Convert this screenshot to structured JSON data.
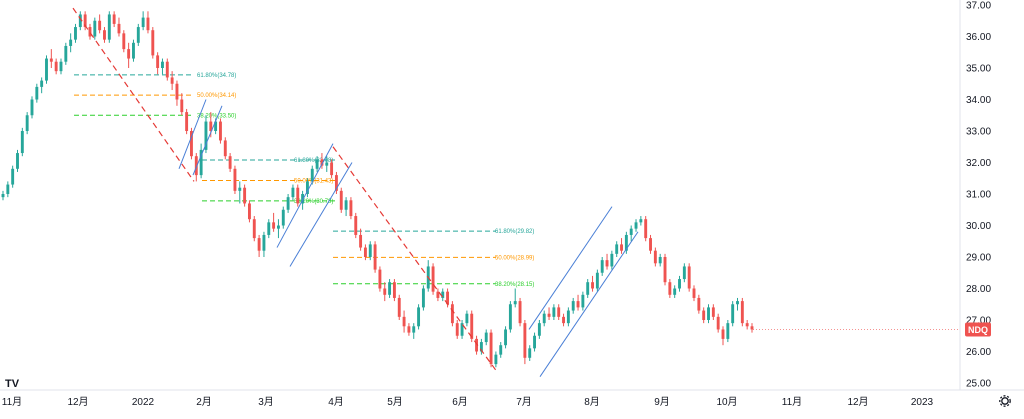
{
  "chart_data": {
    "type": "candlestick",
    "symbol": "NDQ",
    "last_price": 26.7,
    "y_ticks": [
      "37.00",
      "36.00",
      "35.00",
      "34.00",
      "33.00",
      "32.00",
      "31.00",
      "30.00",
      "29.00",
      "28.00",
      "27.00",
      "26.00",
      "25.00"
    ],
    "x_ticks": [
      "11月",
      "12月",
      "2022",
      "2月",
      "3月",
      "4月",
      "5月",
      "6月",
      "7月",
      "8月",
      "9月",
      "10月",
      "11月",
      "12月",
      "2023"
    ],
    "ylim": [
      24.5,
      37.3
    ],
    "candles": [
      [
        30.9,
        31.1,
        30.8,
        31.0
      ],
      [
        31.0,
        31.4,
        30.9,
        31.3
      ],
      [
        31.3,
        31.9,
        31.2,
        31.8
      ],
      [
        31.8,
        32.4,
        31.7,
        32.3
      ],
      [
        32.3,
        33.1,
        32.2,
        33.0
      ],
      [
        33.0,
        33.6,
        32.9,
        33.5
      ],
      [
        33.5,
        34.1,
        33.4,
        34.0
      ],
      [
        34.0,
        34.5,
        33.9,
        34.4
      ],
      [
        34.4,
        34.7,
        34.2,
        34.6
      ],
      [
        34.6,
        35.4,
        34.5,
        35.3
      ],
      [
        35.3,
        35.6,
        35.0,
        35.2
      ],
      [
        35.2,
        35.3,
        34.8,
        34.9
      ],
      [
        34.9,
        35.3,
        34.8,
        35.2
      ],
      [
        35.2,
        35.8,
        35.1,
        35.7
      ],
      [
        35.7,
        36.1,
        35.5,
        35.9
      ],
      [
        35.9,
        36.4,
        35.8,
        36.3
      ],
      [
        36.3,
        36.8,
        36.2,
        36.7
      ],
      [
        36.7,
        36.8,
        36.2,
        36.3
      ],
      [
        36.3,
        36.4,
        35.9,
        36.0
      ],
      [
        36.0,
        36.6,
        35.9,
        36.5
      ],
      [
        36.5,
        36.7,
        36.1,
        36.2
      ],
      [
        36.2,
        36.3,
        35.8,
        35.9
      ],
      [
        35.9,
        36.8,
        35.8,
        36.7
      ],
      [
        36.7,
        36.8,
        36.3,
        36.4
      ],
      [
        36.4,
        36.6,
        36.0,
        36.1
      ],
      [
        36.1,
        36.2,
        35.5,
        35.6
      ],
      [
        35.6,
        35.8,
        35.0,
        35.3
      ],
      [
        35.3,
        35.9,
        35.2,
        35.8
      ],
      [
        35.8,
        36.4,
        35.7,
        36.3
      ],
      [
        36.3,
        36.8,
        36.2,
        36.6
      ],
      [
        36.6,
        36.8,
        36.1,
        36.2
      ],
      [
        36.2,
        36.3,
        35.3,
        35.4
      ],
      [
        35.4,
        35.5,
        34.8,
        35.0
      ],
      [
        35.0,
        35.3,
        34.8,
        35.2
      ],
      [
        35.2,
        35.3,
        34.6,
        34.7
      ],
      [
        34.7,
        34.9,
        34.3,
        34.5
      ],
      [
        34.5,
        34.6,
        33.8,
        34.0
      ],
      [
        34.0,
        34.2,
        33.5,
        33.6
      ],
      [
        33.6,
        33.7,
        32.9,
        33.0
      ],
      [
        33.0,
        33.1,
        32.1,
        32.2
      ],
      [
        32.2,
        32.3,
        31.4,
        31.6
      ],
      [
        31.6,
        32.6,
        31.5,
        32.4
      ],
      [
        32.4,
        33.5,
        32.3,
        33.3
      ],
      [
        33.3,
        33.6,
        32.8,
        33.0
      ],
      [
        33.0,
        33.4,
        32.9,
        33.3
      ],
      [
        33.3,
        33.4,
        32.6,
        32.7
      ],
      [
        32.7,
        32.8,
        32.1,
        32.2
      ],
      [
        32.2,
        32.3,
        31.7,
        31.8
      ],
      [
        31.8,
        31.9,
        31.0,
        31.1
      ],
      [
        31.1,
        31.4,
        30.7,
        31.2
      ],
      [
        31.2,
        31.3,
        30.6,
        30.7
      ],
      [
        30.7,
        30.8,
        30.1,
        30.2
      ],
      [
        30.2,
        30.3,
        29.5,
        29.6
      ],
      [
        29.6,
        29.7,
        29.0,
        29.2
      ],
      [
        29.2,
        29.8,
        29.0,
        29.7
      ],
      [
        29.7,
        30.2,
        29.6,
        30.1
      ],
      [
        30.1,
        30.4,
        29.8,
        29.9
      ],
      [
        29.9,
        30.2,
        29.6,
        30.0
      ],
      [
        30.0,
        30.6,
        29.9,
        30.5
      ],
      [
        30.5,
        31.0,
        30.4,
        30.9
      ],
      [
        30.9,
        31.3,
        30.8,
        31.2
      ],
      [
        31.2,
        31.3,
        30.6,
        30.7
      ],
      [
        30.7,
        31.1,
        30.5,
        31.0
      ],
      [
        31.0,
        31.5,
        30.9,
        31.4
      ],
      [
        31.4,
        31.9,
        31.3,
        31.8
      ],
      [
        31.8,
        32.2,
        31.7,
        32.1
      ],
      [
        32.1,
        32.3,
        31.8,
        31.9
      ],
      [
        31.9,
        32.2,
        31.7,
        32.0
      ],
      [
        32.0,
        32.1,
        31.5,
        31.6
      ],
      [
        31.6,
        31.7,
        31.0,
        31.1
      ],
      [
        31.1,
        31.2,
        30.4,
        30.5
      ],
      [
        30.5,
        30.9,
        30.3,
        30.8
      ],
      [
        30.8,
        30.9,
        30.2,
        30.3
      ],
      [
        30.3,
        30.4,
        29.6,
        29.7
      ],
      [
        29.7,
        29.9,
        29.2,
        29.3
      ],
      [
        29.3,
        29.4,
        28.9,
        29.0
      ],
      [
        29.0,
        29.5,
        28.9,
        29.4
      ],
      [
        29.4,
        29.5,
        28.5,
        28.6
      ],
      [
        28.6,
        28.7,
        27.9,
        28.0
      ],
      [
        28.0,
        28.2,
        27.6,
        27.8
      ],
      [
        27.8,
        28.3,
        27.7,
        28.2
      ],
      [
        28.2,
        28.3,
        27.6,
        27.7
      ],
      [
        27.7,
        27.8,
        27.0,
        27.1
      ],
      [
        27.1,
        27.3,
        26.6,
        26.8
      ],
      [
        26.8,
        26.9,
        26.5,
        26.6
      ],
      [
        26.6,
        26.9,
        26.4,
        26.8
      ],
      [
        26.8,
        27.5,
        26.7,
        27.4
      ],
      [
        27.4,
        28.1,
        27.3,
        28.0
      ],
      [
        28.0,
        28.9,
        27.9,
        28.7
      ],
      [
        28.7,
        28.8,
        27.8,
        27.9
      ],
      [
        27.9,
        28.0,
        27.6,
        27.7
      ],
      [
        27.7,
        28.0,
        27.6,
        27.9
      ],
      [
        27.9,
        28.0,
        27.4,
        27.5
      ],
      [
        27.5,
        27.6,
        26.8,
        26.9
      ],
      [
        26.9,
        27.0,
        26.4,
        26.5
      ],
      [
        26.5,
        27.0,
        26.4,
        26.9
      ],
      [
        26.9,
        27.3,
        26.8,
        27.2
      ],
      [
        27.2,
        27.3,
        26.3,
        26.4
      ],
      [
        26.4,
        26.5,
        25.9,
        26.0
      ],
      [
        26.0,
        26.4,
        25.9,
        26.3
      ],
      [
        26.3,
        26.7,
        26.2,
        26.6
      ],
      [
        26.6,
        26.7,
        25.5,
        25.6
      ],
      [
        25.6,
        26.0,
        25.5,
        25.9
      ],
      [
        25.9,
        26.3,
        25.8,
        26.2
      ],
      [
        26.2,
        26.8,
        26.1,
        26.7
      ],
      [
        26.7,
        27.6,
        26.6,
        27.5
      ],
      [
        27.5,
        28.0,
        27.4,
        27.6
      ],
      [
        27.6,
        27.7,
        26.8,
        26.9
      ],
      [
        26.9,
        27.0,
        25.6,
        25.8
      ],
      [
        25.8,
        26.2,
        25.7,
        26.1
      ],
      [
        26.1,
        26.6,
        26.0,
        26.5
      ],
      [
        26.5,
        27.0,
        26.4,
        26.9
      ],
      [
        26.9,
        27.3,
        26.8,
        27.2
      ],
      [
        27.2,
        27.4,
        27.0,
        27.1
      ],
      [
        27.1,
        27.5,
        27.0,
        27.4
      ],
      [
        27.4,
        27.5,
        27.0,
        27.1
      ],
      [
        27.1,
        27.2,
        26.8,
        26.9
      ],
      [
        26.9,
        27.4,
        26.8,
        27.3
      ],
      [
        27.3,
        27.7,
        27.2,
        27.6
      ],
      [
        27.6,
        27.8,
        27.3,
        27.4
      ],
      [
        27.4,
        27.9,
        27.3,
        27.8
      ],
      [
        27.8,
        28.3,
        27.7,
        28.2
      ],
      [
        28.2,
        28.4,
        27.9,
        28.0
      ],
      [
        28.0,
        28.6,
        27.9,
        28.5
      ],
      [
        28.5,
        29.0,
        28.4,
        28.9
      ],
      [
        28.9,
        29.1,
        28.6,
        28.7
      ],
      [
        28.7,
        29.2,
        28.6,
        29.1
      ],
      [
        29.1,
        29.5,
        29.0,
        29.4
      ],
      [
        29.4,
        29.6,
        29.1,
        29.2
      ],
      [
        29.2,
        29.8,
        29.1,
        29.7
      ],
      [
        29.7,
        30.0,
        29.5,
        29.9
      ],
      [
        29.9,
        30.2,
        29.8,
        30.1
      ],
      [
        30.1,
        30.3,
        30.0,
        30.2
      ],
      [
        30.2,
        30.3,
        29.5,
        29.6
      ],
      [
        29.6,
        29.7,
        29.1,
        29.2
      ],
      [
        29.2,
        29.3,
        28.7,
        28.8
      ],
      [
        28.8,
        29.1,
        28.7,
        29.0
      ],
      [
        29.0,
        29.1,
        28.1,
        28.2
      ],
      [
        28.2,
        28.3,
        27.7,
        27.8
      ],
      [
        27.8,
        28.1,
        27.7,
        28.0
      ],
      [
        28.0,
        28.4,
        27.9,
        28.3
      ],
      [
        28.3,
        28.8,
        28.2,
        28.7
      ],
      [
        28.7,
        28.8,
        27.9,
        28.0
      ],
      [
        28.0,
        28.1,
        27.6,
        27.7
      ],
      [
        27.7,
        27.8,
        27.2,
        27.3
      ],
      [
        27.3,
        27.4,
        26.9,
        27.0
      ],
      [
        27.0,
        27.5,
        26.9,
        27.4
      ],
      [
        27.4,
        27.5,
        27.0,
        27.1
      ],
      [
        27.1,
        27.2,
        26.6,
        26.7
      ],
      [
        26.7,
        26.8,
        26.2,
        26.4
      ],
      [
        26.4,
        27.0,
        26.3,
        26.9
      ],
      [
        26.9,
        27.6,
        26.8,
        27.5
      ],
      [
        27.5,
        27.7,
        27.3,
        27.6
      ],
      [
        27.6,
        27.7,
        26.8,
        26.9
      ],
      [
        26.9,
        27.0,
        26.7,
        26.8
      ],
      [
        26.8,
        26.9,
        26.6,
        26.7
      ]
    ],
    "fib_groups": [
      {
        "levels": [
          {
            "label": "61.80%(34.78)",
            "value": 34.78
          },
          {
            "label": "50.00%(34.14)",
            "value": 34.14
          },
          {
            "label": "38.20%(33.50)",
            "value": 33.5
          }
        ]
      },
      {
        "levels": [
          {
            "label": "61.80%(32.08)",
            "value": 32.08
          },
          {
            "label": "50.00%(31.43)",
            "value": 31.43
          },
          {
            "label": "38.20%(30.78)",
            "value": 30.78
          }
        ]
      },
      {
        "levels": [
          {
            "label": "61.80%(29.82)",
            "value": 29.82
          },
          {
            "label": "50.00%(28.99)",
            "value": 28.99
          },
          {
            "label": "38.20%(28.15)",
            "value": 28.15
          }
        ]
      }
    ],
    "colors": {
      "up": "#26a69a",
      "down": "#ef5350",
      "trend": "#e53935",
      "channel": "#4a7fd6",
      "fib_618": "#26a69a",
      "fib_500": "#ff9800",
      "fib_382": "#2bcf2b",
      "price_badge": "#ef5350",
      "axis_text": "#131722"
    }
  }
}
